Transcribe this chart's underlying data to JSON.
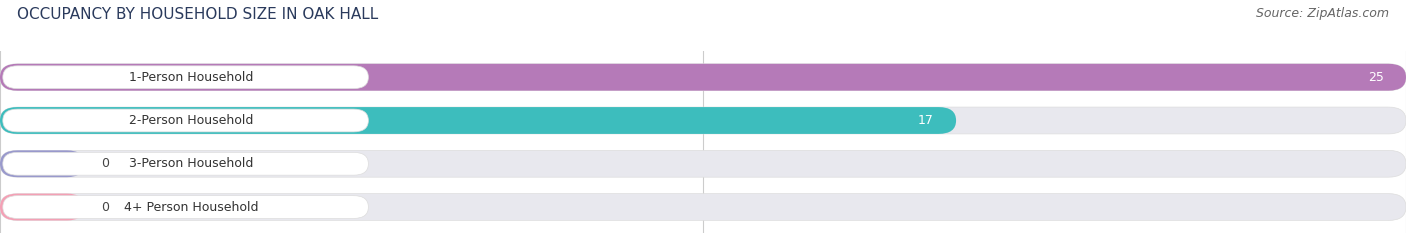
{
  "title": "OCCUPANCY BY HOUSEHOLD SIZE IN OAK HALL",
  "source": "Source: ZipAtlas.com",
  "categories": [
    "1-Person Household",
    "2-Person Household",
    "3-Person Household",
    "4+ Person Household"
  ],
  "values": [
    25,
    17,
    0,
    0
  ],
  "bar_colors": [
    "#b57ab8",
    "#3dbdbd",
    "#9999cc",
    "#f4a0b5"
  ],
  "bar_label_colors": [
    "white",
    "white",
    "black",
    "black"
  ],
  "xlim": [
    0,
    25
  ],
  "xticks": [
    0,
    12.5,
    25
  ],
  "background_color": "#ffffff",
  "bar_bg_color": "#e8e8ee",
  "title_fontsize": 11,
  "source_fontsize": 9,
  "label_fontsize": 9,
  "value_fontsize": 9,
  "bar_height": 0.62,
  "figsize": [
    14.06,
    2.33
  ],
  "dpi": 100
}
